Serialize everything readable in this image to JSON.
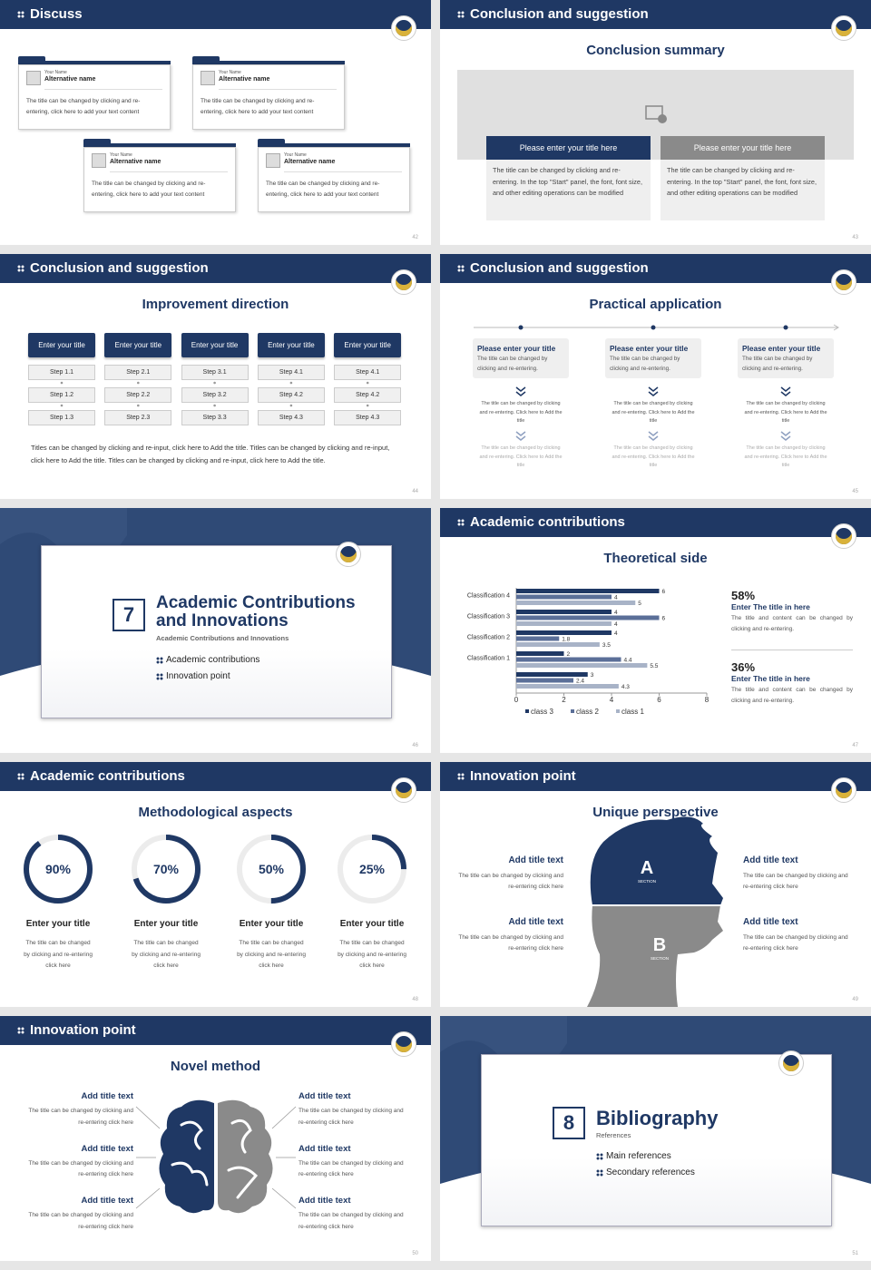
{
  "slides": [
    {
      "header": "Discuss",
      "page": "42",
      "cards": [
        {
          "label": "Your Name",
          "name": "Alternative name",
          "text": "The title can be changed by clicking and re-entering, click here to add your text content"
        },
        {
          "label": "Your Name",
          "name": "Alternative name",
          "text": "The title can be changed by clicking and re-entering, click here to add your text content"
        },
        {
          "label": "Your Name",
          "name": "Alternative name",
          "text": "The title can be changed by clicking and re-entering, click here to add your text content"
        },
        {
          "label": "Your Name",
          "name": "Alternative name",
          "text": "The title can be changed by clicking and re-entering, click here to add your text content"
        }
      ]
    },
    {
      "header": "Conclusion and suggestion",
      "page": "43",
      "subtitle": "Conclusion summary",
      "panels": [
        {
          "title": "Please enter your title here",
          "text": "The title can be changed by clicking and re-entering. In the top \"Start\" panel, the font, font size, and other editing operations can be modified"
        },
        {
          "title": "Please enter your title here",
          "text": "The title can be changed by clicking and re-entering. In the top \"Start\" panel, the font, font size, and other editing operations can be modified"
        }
      ]
    },
    {
      "header": "Conclusion and suggestion",
      "page": "44",
      "subtitle": "Improvement direction",
      "columns": [
        {
          "title": "Enter your title",
          "steps": [
            "Step 1.1",
            "Step 1.2",
            "Step 1.3"
          ]
        },
        {
          "title": "Enter your title",
          "steps": [
            "Step 2.1",
            "Step 2.2",
            "Step 2.3"
          ]
        },
        {
          "title": "Enter your title",
          "steps": [
            "Step 3.1",
            "Step 3.2",
            "Step 3.3"
          ]
        },
        {
          "title": "Enter your title",
          "steps": [
            "Step 4.1",
            "Step 4.2",
            "Step 4.3"
          ]
        },
        {
          "title": "Enter your title",
          "steps": [
            "Step 4.1",
            "Step 4.2",
            "Step 4.3"
          ]
        }
      ],
      "text": "Titles can be changed by clicking and re-input, click here to Add the title. Titles can be changed by clicking and re-input, click here to Add the title. Titles can be changed by clicking and re-input, click here to Add the title."
    },
    {
      "header": "Conclusion and suggestion",
      "page": "45",
      "subtitle": "Practical application",
      "columns": [
        {
          "title": "Please enter your title",
          "text": "The title can be changed by clicking and re-entering.",
          "notes": [
            "The title can be changed by clicking and re-entering. Click here to Add the title",
            "The title can be changed by clicking and re-entering. Click here to Add the title"
          ]
        },
        {
          "title": "Please enter your title",
          "text": "The title can be changed by clicking and re-entering.",
          "notes": [
            "The title can be changed by clicking and re-entering. Click here to Add the title",
            "The title can be changed by clicking and re-entering. Click here to Add the title"
          ]
        },
        {
          "title": "Please enter your title",
          "text": "The title can be changed by clicking and re-entering.",
          "notes": [
            "The title can be changed by clicking and re-entering. Click here to Add the title",
            "The title can be changed by clicking and re-entering. Click here to Add the title"
          ]
        }
      ]
    },
    {
      "page": "46",
      "number": "7",
      "title": "Academic Contributions and Innovations",
      "subtitle": "Academic Contributions and Innovations",
      "items": [
        "Academic contributions",
        "Innovation point"
      ]
    },
    {
      "header": "Academic contributions",
      "page": "47",
      "subtitle": "Theoretical side",
      "chart": {
        "type": "bar",
        "categories": [
          "Classification 4",
          "Classification 3",
          "Classification 2",
          "Classification 1",
          null
        ],
        "series": [
          {
            "name": "class 3",
            "color": "#1f3864",
            "values": [
              6,
              4,
              4,
              2,
              3
            ]
          },
          {
            "name": "class 2",
            "color": "#5b6f98",
            "values": [
              4,
              6,
              1.8,
              4.4,
              2.4
            ]
          },
          {
            "name": "class 1",
            "color": "#a8b3c7",
            "values": [
              5,
              4,
              3.5,
              5.5,
              4.3
            ]
          }
        ],
        "xlim": [
          0,
          8
        ],
        "xticks": [
          0,
          2,
          4,
          6,
          8
        ]
      },
      "stats": [
        {
          "value": "58%",
          "title": "Enter The title in here",
          "text": "The title and content can be changed by clicking and re-entering."
        },
        {
          "value": "36%",
          "title": "Enter The title in here",
          "text": "The title and content can be changed by clicking and re-entering."
        }
      ]
    },
    {
      "header": "Academic contributions",
      "page": "48",
      "subtitle": "Methodological aspects",
      "items": [
        {
          "value": 90,
          "value_label": "90%",
          "title": "Enter your title",
          "text": "The title can be changed by clicking and re-entering click here"
        },
        {
          "value": 70,
          "value_label": "70%",
          "title": "Enter your title",
          "text": "The title can be changed by clicking and re-entering click here"
        },
        {
          "value": 50,
          "value_label": "50%",
          "title": "Enter your title",
          "text": "The title can be changed by clicking and re-entering click here"
        },
        {
          "value": 25,
          "value_label": "25%",
          "title": "Enter your title",
          "text": "The title can be changed by clicking and re-entering click here"
        }
      ]
    },
    {
      "header": "Innovation point",
      "page": "49",
      "subtitle": "Unique perspective",
      "labels": [
        "A",
        "B"
      ],
      "section": "SECTION",
      "items": [
        {
          "title": "Add title text",
          "text": "The title can be changed by clicking and re-entering click here"
        },
        {
          "title": "Add title text",
          "text": "The title can be changed by clicking and re-entering click here"
        },
        {
          "title": "Add title text",
          "text": "The title can be changed by clicking and re-entering click here"
        },
        {
          "title": "Add title text",
          "text": "The title can be changed by clicking and re-entering click here"
        }
      ]
    },
    {
      "header": "Innovation point",
      "page": "50",
      "subtitle": "Novel method",
      "items": [
        {
          "title": "Add title text",
          "text": "The title can be changed by clicking and re-entering click here"
        },
        {
          "title": "Add title text",
          "text": "The title can be changed by clicking and re-entering click here"
        },
        {
          "title": "Add title text",
          "text": "The title can be changed by clicking and re-entering click here"
        },
        {
          "title": "Add title text",
          "text": "The title can be changed by clicking and re-entering click here"
        },
        {
          "title": "Add title text",
          "text": "The title can be changed by clicking and re-entering click here"
        },
        {
          "title": "Add title text",
          "text": "The title can be changed by clicking and re-entering click here"
        }
      ]
    },
    {
      "page": "51",
      "number": "8",
      "title": "Bibliography",
      "subtitle": "References",
      "items": [
        "Main references",
        "Secondary references"
      ]
    }
  ]
}
